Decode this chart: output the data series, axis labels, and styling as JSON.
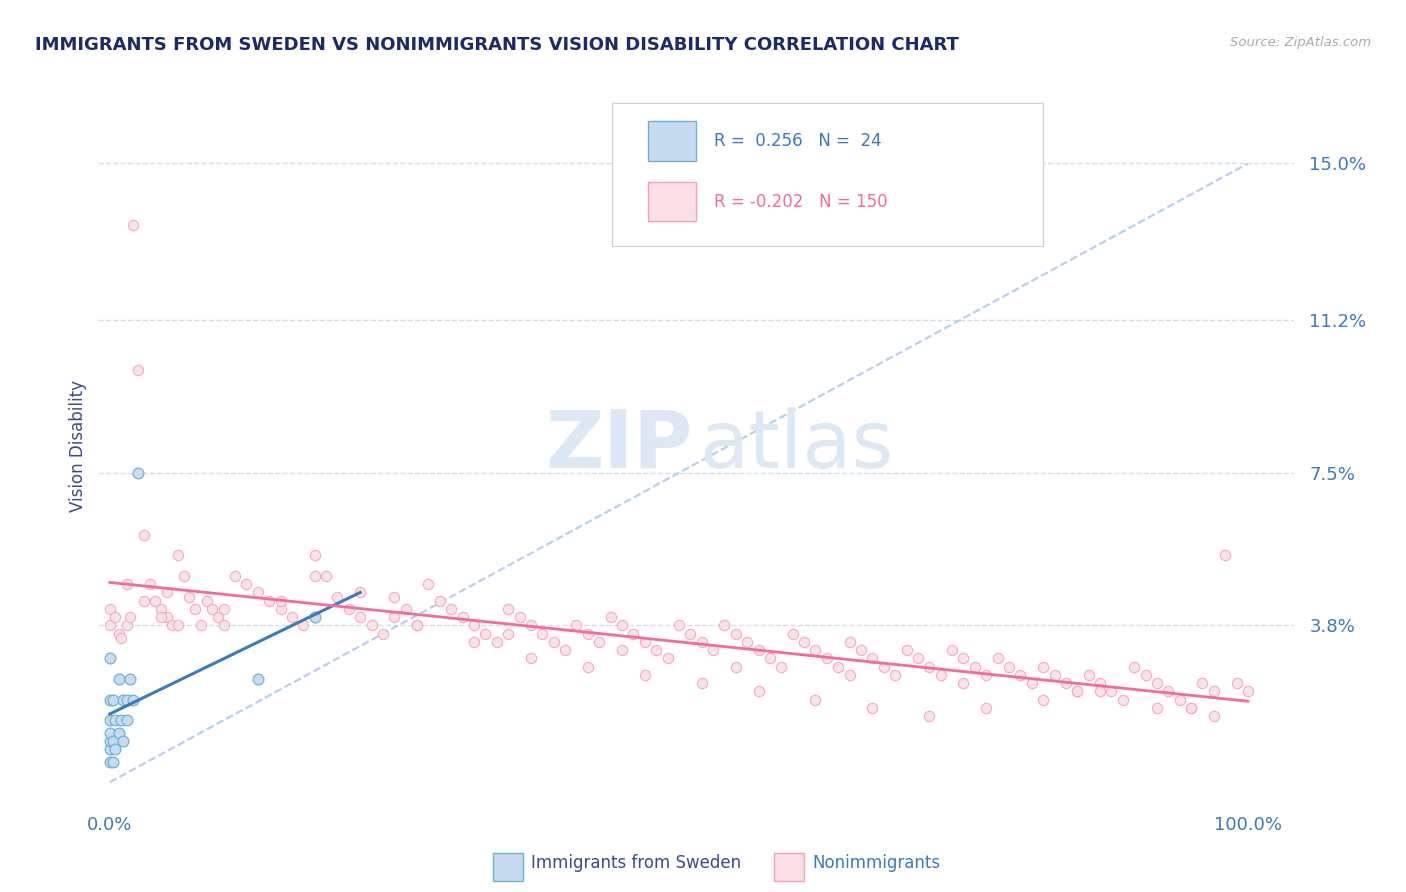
{
  "title": "IMMIGRANTS FROM SWEDEN VS NONIMMIGRANTS VISION DISABILITY CORRELATION CHART",
  "source": "Source: ZipAtlas.com",
  "ylabel": "Vision Disability",
  "legend_labels": [
    "Immigrants from Sweden",
    "Nonimmigrants"
  ],
  "R_sweden": 0.256,
  "N_sweden": 24,
  "R_nonimm": -0.202,
  "N_nonimm": 150,
  "ytick_positions": [
    0.038,
    0.075,
    0.112,
    0.15
  ],
  "ytick_labels": [
    "3.8%",
    "7.5%",
    "11.2%",
    "15.0%"
  ],
  "xlim": [
    -0.01,
    1.04
  ],
  "ylim": [
    -0.005,
    0.168
  ],
  "blue_scatter_face": "#c6dbef",
  "blue_scatter_edge": "#6baed6",
  "pink_scatter_face": "#fce0e8",
  "pink_scatter_edge": "#fc9db8",
  "trend_blue": "#3a7abf",
  "trend_pink": "#f768a1",
  "diagonal_color": "#aec9e8",
  "grid_color": "#c8d4e8",
  "title_color": "#1a2a6a",
  "axis_label_color": "#3a4a8a",
  "tick_label_color": "#3a7abf",
  "source_color": "#aaaaaa",
  "watermark_color": "#dce8f5",
  "legend_box_color": "#ddddee",
  "sweden_x": [
    0.0,
    0.0,
    0.0,
    0.0,
    0.0,
    0.0,
    0.003,
    0.003,
    0.003,
    0.005,
    0.005,
    0.008,
    0.008,
    0.01,
    0.012,
    0.012,
    0.015,
    0.015,
    0.018,
    0.02,
    0.025,
    0.13,
    0.18,
    0.0
  ],
  "sweden_y": [
    0.005,
    0.008,
    0.01,
    0.012,
    0.015,
    0.02,
    0.005,
    0.01,
    0.02,
    0.008,
    0.015,
    0.012,
    0.025,
    0.015,
    0.01,
    0.02,
    0.015,
    0.02,
    0.025,
    0.02,
    0.075,
    0.025,
    0.04,
    0.03
  ],
  "nonimm_x": [
    0.0,
    0.0,
    0.005,
    0.008,
    0.01,
    0.015,
    0.018,
    0.02,
    0.025,
    0.03,
    0.035,
    0.04,
    0.045,
    0.05,
    0.055,
    0.06,
    0.065,
    0.07,
    0.075,
    0.08,
    0.085,
    0.09,
    0.095,
    0.1,
    0.11,
    0.12,
    0.13,
    0.14,
    0.15,
    0.16,
    0.17,
    0.18,
    0.19,
    0.2,
    0.21,
    0.22,
    0.23,
    0.24,
    0.25,
    0.26,
    0.27,
    0.28,
    0.29,
    0.3,
    0.31,
    0.32,
    0.33,
    0.34,
    0.35,
    0.36,
    0.37,
    0.38,
    0.39,
    0.4,
    0.41,
    0.42,
    0.43,
    0.44,
    0.45,
    0.46,
    0.47,
    0.48,
    0.49,
    0.5,
    0.51,
    0.52,
    0.53,
    0.54,
    0.55,
    0.56,
    0.57,
    0.58,
    0.59,
    0.6,
    0.61,
    0.62,
    0.63,
    0.64,
    0.65,
    0.66,
    0.67,
    0.68,
    0.69,
    0.7,
    0.71,
    0.72,
    0.73,
    0.74,
    0.75,
    0.76,
    0.77,
    0.78,
    0.79,
    0.8,
    0.81,
    0.82,
    0.83,
    0.84,
    0.85,
    0.86,
    0.87,
    0.88,
    0.89,
    0.9,
    0.91,
    0.92,
    0.93,
    0.94,
    0.95,
    0.96,
    0.97,
    0.98,
    0.99,
    1.0,
    0.015,
    0.03,
    0.045,
    0.06,
    0.1,
    0.18,
    0.22,
    0.27,
    0.32,
    0.37,
    0.42,
    0.47,
    0.52,
    0.57,
    0.62,
    0.67,
    0.72,
    0.77,
    0.82,
    0.87,
    0.92,
    0.97,
    0.25,
    0.35,
    0.55,
    0.75,
    0.85,
    0.95,
    0.65,
    0.45,
    0.15,
    0.05
  ],
  "nonimm_y": [
    0.038,
    0.042,
    0.04,
    0.036,
    0.035,
    0.038,
    0.04,
    0.135,
    0.1,
    0.06,
    0.048,
    0.044,
    0.042,
    0.04,
    0.038,
    0.055,
    0.05,
    0.045,
    0.042,
    0.038,
    0.044,
    0.042,
    0.04,
    0.038,
    0.05,
    0.048,
    0.046,
    0.044,
    0.042,
    0.04,
    0.038,
    0.055,
    0.05,
    0.045,
    0.042,
    0.04,
    0.038,
    0.036,
    0.045,
    0.042,
    0.038,
    0.048,
    0.044,
    0.042,
    0.04,
    0.038,
    0.036,
    0.034,
    0.042,
    0.04,
    0.038,
    0.036,
    0.034,
    0.032,
    0.038,
    0.036,
    0.034,
    0.04,
    0.038,
    0.036,
    0.034,
    0.032,
    0.03,
    0.038,
    0.036,
    0.034,
    0.032,
    0.038,
    0.036,
    0.034,
    0.032,
    0.03,
    0.028,
    0.036,
    0.034,
    0.032,
    0.03,
    0.028,
    0.034,
    0.032,
    0.03,
    0.028,
    0.026,
    0.032,
    0.03,
    0.028,
    0.026,
    0.032,
    0.03,
    0.028,
    0.026,
    0.03,
    0.028,
    0.026,
    0.024,
    0.028,
    0.026,
    0.024,
    0.022,
    0.026,
    0.024,
    0.022,
    0.02,
    0.028,
    0.026,
    0.024,
    0.022,
    0.02,
    0.018,
    0.024,
    0.022,
    0.055,
    0.024,
    0.022,
    0.048,
    0.044,
    0.04,
    0.038,
    0.042,
    0.05,
    0.046,
    0.038,
    0.034,
    0.03,
    0.028,
    0.026,
    0.024,
    0.022,
    0.02,
    0.018,
    0.016,
    0.018,
    0.02,
    0.022,
    0.018,
    0.016,
    0.04,
    0.036,
    0.028,
    0.024,
    0.022,
    0.018,
    0.026,
    0.032,
    0.044,
    0.046
  ]
}
